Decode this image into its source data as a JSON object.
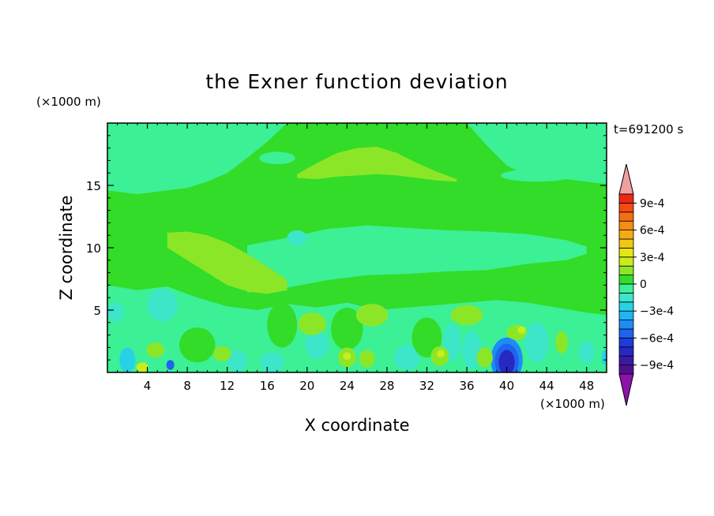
{
  "chart_data": {
    "type": "heatmap",
    "title": "the Exner function deviation",
    "time_label": "t=691200 s",
    "xlabel": "X coordinate",
    "ylabel": "Z coordinate",
    "x_unit": "(×1000 m)",
    "y_unit": "(×1000 m)",
    "xlim": [
      0,
      50
    ],
    "ylim": [
      0,
      20
    ],
    "x_ticks": [
      4,
      8,
      12,
      16,
      20,
      24,
      28,
      32,
      36,
      40,
      44,
      48
    ],
    "y_ticks": [
      5,
      10,
      15
    ],
    "colorbar": {
      "levels": [
        -0.001,
        -0.0009,
        -0.0008,
        -0.0007,
        -0.0006,
        -0.0005,
        -0.0004,
        -0.0003,
        -0.0002,
        -0.0001,
        0,
        0.0001,
        0.0002,
        0.0003,
        0.0004,
        0.0005,
        0.0006,
        0.0007,
        0.0008,
        0.0009,
        0.001
      ],
      "colors": [
        "#4f0f8f",
        "#3a1aa5",
        "#2828c3",
        "#1e3cdc",
        "#1e64ee",
        "#1e8cf5",
        "#1eb4f5",
        "#28d2e6",
        "#3ce6c8",
        "#3cf096",
        "#32dc28",
        "#8ce628",
        "#c8ec1e",
        "#e6e614",
        "#f0c814",
        "#f5aa14",
        "#f58c14",
        "#f56e14",
        "#f54b14",
        "#ec2814"
      ],
      "under_color": "#8c14aa",
      "over_color": "#f0a0a0",
      "tick_labels": [
        {
          "value": 0.0009,
          "label": "9e-4"
        },
        {
          "value": 0.0006,
          "label": "6e-4"
        },
        {
          "value": 0.0003,
          "label": "3e-4"
        },
        {
          "value": 0,
          "label": "0"
        },
        {
          "value": -0.0003,
          "label": "−3e-4"
        },
        {
          "value": -0.0006,
          "label": "−6e-4"
        },
        {
          "value": -0.0009,
          "label": "−9e-4"
        }
      ]
    },
    "background_color": "#32dc28",
    "features": [
      {
        "shape": "band",
        "x": [
          0,
          5,
          10,
          15,
          20,
          25,
          30,
          35,
          40,
          45,
          50
        ],
        "y_low": [
          10.6,
          10.8,
          11.6,
          12.2,
          12.5,
          12.8,
          13.0,
          12.5,
          12.8,
          12.6,
          12.8
        ],
        "y_high": [
          13.0,
          14.2,
          14.6,
          14.8,
          15.4,
          16.6,
          15.8,
          15.6,
          15.6,
          14.6,
          15.2
        ],
        "value": 5e-05
      },
      {
        "shape": "band",
        "x": [
          0,
          5,
          10,
          14,
          16
        ],
        "y_low": [
          19.9,
          19.9,
          19.9,
          19.9,
          20
        ],
        "y_high": [
          20,
          20,
          20,
          20,
          20
        ],
        "value": 0
      },
      {
        "shape": "band",
        "x": [
          0,
          3,
          6,
          8,
          10,
          12,
          14,
          16,
          18
        ],
        "y_low": [
          14.6,
          14.3,
          14.6,
          14.8,
          15.3,
          16.0,
          17.2,
          18.5,
          20
        ],
        "y_high": [
          20,
          20,
          20,
          20,
          20,
          20,
          20,
          20,
          20
        ],
        "value": -5e-05
      },
      {
        "shape": "band",
        "x": [
          36,
          38,
          40,
          42,
          44,
          46,
          48,
          50
        ],
        "y_low": [
          20,
          18.2,
          16.6,
          15.8,
          15.6,
          15.5,
          15.3,
          15.1
        ],
        "y_high": [
          20,
          20,
          20,
          20,
          20,
          20,
          20,
          20
        ],
        "value": -5e-05
      },
      {
        "shape": "band",
        "x": [
          19,
          21,
          23,
          25,
          27,
          29,
          31,
          33,
          35
        ],
        "y_low": [
          15.6,
          15.5,
          15.7,
          15.8,
          15.9,
          15.8,
          15.6,
          15.4,
          15.3
        ],
        "y_high": [
          15.9,
          16.8,
          17.6,
          18.0,
          18.1,
          17.6,
          16.8,
          16.1,
          15.5
        ],
        "value": 0.00015
      },
      {
        "shape": "band",
        "x": [
          14,
          18,
          22,
          26,
          30,
          34,
          38,
          42,
          46,
          48
        ],
        "y_low": [
          6.4,
          6.8,
          7.4,
          7.8,
          7.9,
          8.1,
          8.2,
          8.7,
          9.0,
          9.5
        ],
        "y_high": [
          10.2,
          10.8,
          11.5,
          11.8,
          11.6,
          11.4,
          11.3,
          11.1,
          10.6,
          10.1
        ],
        "value": -8e-05
      },
      {
        "shape": "band",
        "x": [
          6,
          8,
          10,
          12,
          14,
          16,
          18
        ],
        "y_low": [
          10.0,
          9.0,
          8.0,
          7.0,
          6.5,
          6.3,
          6.6
        ],
        "y_high": [
          11.2,
          11.3,
          11.0,
          10.4,
          9.5,
          8.5,
          7.4
        ],
        "value": 0.00015
      },
      {
        "shape": "band",
        "x": [
          0,
          3,
          6,
          9,
          12,
          15,
          18,
          21,
          24,
          27,
          30,
          33,
          36,
          39,
          42,
          45,
          48,
          50
        ],
        "y_low": [
          0,
          0,
          0,
          0,
          0,
          0,
          0,
          0,
          0,
          0,
          0,
          0,
          0,
          0,
          0,
          0,
          0,
          0
        ],
        "y_high": [
          7.0,
          6.6,
          6.9,
          6.0,
          5.3,
          5.0,
          5.5,
          5.2,
          5.6,
          5.0,
          5.2,
          5.4,
          5.6,
          5.8,
          5.6,
          5.2,
          4.8,
          4.6
        ],
        "value": -8e-05
      },
      {
        "shape": "blob",
        "x": 19.0,
        "y": 10.8,
        "rx": 1.0,
        "ry": 0.6,
        "value": -0.00018
      },
      {
        "shape": "blob",
        "x": 17.0,
        "y": 17.2,
        "rx": 1.8,
        "ry": 0.5,
        "value": -8e-05
      },
      {
        "shape": "blob",
        "x": 3.0,
        "y": 16.5,
        "rx": 2.5,
        "ry": 0.6,
        "value": -8e-05
      },
      {
        "shape": "blob",
        "x": 43.0,
        "y": 15.8,
        "rx": 3.6,
        "ry": 0.5,
        "value": -8e-05
      },
      {
        "shape": "blob",
        "x": 5.5,
        "y": 5.4,
        "rx": 1.5,
        "ry": 1.3,
        "value": -0.00018
      },
      {
        "shape": "blob",
        "x": 0.8,
        "y": 4.8,
        "rx": 0.8,
        "ry": 0.8,
        "value": -0.00018
      },
      {
        "shape": "blob",
        "x": 36.5,
        "y": 1.8,
        "rx": 1.0,
        "ry": 1.5,
        "value": -0.00018
      },
      {
        "shape": "blob",
        "x": 34.5,
        "y": 2.4,
        "rx": 0.9,
        "ry": 1.5,
        "value": -0.00018
      },
      {
        "shape": "blob",
        "x": 43.0,
        "y": 2.4,
        "rx": 1.2,
        "ry": 1.6,
        "value": -0.00018
      },
      {
        "shape": "blob",
        "x": 30.0,
        "y": 1.2,
        "rx": 1.3,
        "ry": 1.0,
        "value": -0.00018
      },
      {
        "shape": "blob",
        "x": 13.0,
        "y": 0.9,
        "rx": 1.0,
        "ry": 0.9,
        "value": -0.00018
      },
      {
        "shape": "blob",
        "x": 16.5,
        "y": 0.8,
        "rx": 1.2,
        "ry": 0.8,
        "value": -0.00018
      },
      {
        "shape": "blob",
        "x": 21.0,
        "y": 2.2,
        "rx": 1.2,
        "ry": 1.1,
        "value": -0.00018
      },
      {
        "shape": "blob",
        "x": 40.0,
        "y": 1.0,
        "rx": 1.6,
        "ry": 1.8,
        "value": -0.00045
      },
      {
        "shape": "blob",
        "x": 40.0,
        "y": 0.9,
        "rx": 1.2,
        "ry": 1.4,
        "value": -0.0006
      },
      {
        "shape": "blob",
        "x": 40.0,
        "y": 0.8,
        "rx": 0.8,
        "ry": 1.0,
        "value": -0.00075
      },
      {
        "shape": "blob",
        "x": 2.0,
        "y": 1.0,
        "rx": 0.8,
        "ry": 1.0,
        "value": -0.00028
      },
      {
        "shape": "blob",
        "x": 6.3,
        "y": 0.6,
        "rx": 0.4,
        "ry": 0.4,
        "value": -0.00055
      },
      {
        "shape": "blob",
        "x": 17.5,
        "y": 3.8,
        "rx": 1.5,
        "ry": 1.8,
        "value": 5e-05
      },
      {
        "shape": "blob",
        "x": 24.0,
        "y": 3.5,
        "rx": 1.6,
        "ry": 1.7,
        "value": 5e-05
      },
      {
        "shape": "blob",
        "x": 32.0,
        "y": 2.8,
        "rx": 1.5,
        "ry": 1.6,
        "value": 5e-05
      },
      {
        "shape": "blob",
        "x": 9.0,
        "y": 2.2,
        "rx": 1.8,
        "ry": 1.4,
        "value": 5e-05
      },
      {
        "shape": "blob",
        "x": 26.5,
        "y": 4.6,
        "rx": 1.6,
        "ry": 0.9,
        "value": 0.00015
      },
      {
        "shape": "blob",
        "x": 36.0,
        "y": 4.6,
        "rx": 1.6,
        "ry": 0.8,
        "value": 0.00015
      },
      {
        "shape": "blob",
        "x": 20.5,
        "y": 3.9,
        "rx": 1.4,
        "ry": 0.9,
        "value": 0.00015
      },
      {
        "shape": "blob",
        "x": 4.8,
        "y": 1.8,
        "rx": 0.9,
        "ry": 0.6,
        "value": 0.00015
      },
      {
        "shape": "blob",
        "x": 24.0,
        "y": 1.2,
        "rx": 0.9,
        "ry": 0.8,
        "value": 0.00015
      },
      {
        "shape": "blob",
        "x": 33.3,
        "y": 1.3,
        "rx": 0.9,
        "ry": 0.8,
        "value": 0.00015
      },
      {
        "shape": "blob",
        "x": 37.8,
        "y": 1.2,
        "rx": 0.8,
        "ry": 0.8,
        "value": 0.00015
      },
      {
        "shape": "blob",
        "x": 41.0,
        "y": 3.2,
        "rx": 1.0,
        "ry": 0.6,
        "value": 0.00015
      },
      {
        "shape": "blob",
        "x": 45.5,
        "y": 2.4,
        "rx": 0.6,
        "ry": 0.9,
        "value": 0.00015
      },
      {
        "shape": "blob",
        "x": 11.5,
        "y": 1.5,
        "rx": 0.9,
        "ry": 0.6,
        "value": 0.00015
      },
      {
        "shape": "blob",
        "x": 26.0,
        "y": 1.1,
        "rx": 0.8,
        "ry": 0.7,
        "value": 0.00015
      },
      {
        "shape": "blob",
        "x": 3.5,
        "y": 0.4,
        "rx": 0.6,
        "ry": 0.4,
        "value": 0.00025
      },
      {
        "shape": "blob",
        "x": 41.5,
        "y": 3.4,
        "rx": 0.4,
        "ry": 0.3,
        "value": 0.00025
      },
      {
        "shape": "blob",
        "x": 24.0,
        "y": 1.3,
        "rx": 0.4,
        "ry": 0.3,
        "value": 0.00025
      },
      {
        "shape": "blob",
        "x": 33.4,
        "y": 1.5,
        "rx": 0.4,
        "ry": 0.3,
        "value": 0.00025
      },
      {
        "shape": "blob",
        "x": 48.0,
        "y": 1.6,
        "rx": 0.8,
        "ry": 0.9,
        "value": -0.00018
      },
      {
        "shape": "blob",
        "x": 49.8,
        "y": 1.2,
        "rx": 0.3,
        "ry": 0.6,
        "value": -0.00028
      }
    ]
  }
}
